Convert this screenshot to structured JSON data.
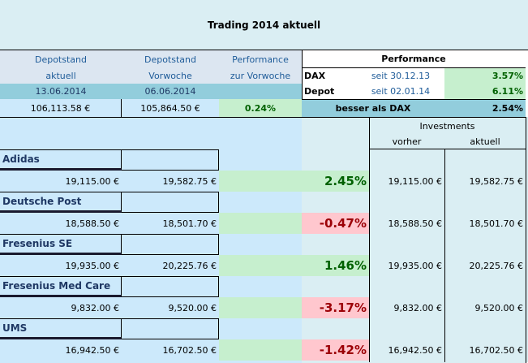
{
  "title": "Trading 2014 aktuell",
  "header": {
    "col1": [
      "Depotstand",
      "aktuell"
    ],
    "col2": [
      "Depotstand",
      "Vorwoche"
    ],
    "col3": [
      "Performance",
      "zur Vorwoche"
    ],
    "date_current": "13.06.2014",
    "date_previous": "06.06.2014",
    "value_current": "106,113.58 €",
    "value_previous": "105,864.50 €",
    "performance_week": "0.24%"
  },
  "performance": {
    "title": "Performance",
    "rows": [
      {
        "label": "DAX",
        "since": "seit 30.12.13",
        "value": "3.57%"
      },
      {
        "label": "Depot",
        "since": "seit 02.01.14",
        "value": "6.11%"
      }
    ],
    "compare_label": "besser als DAX",
    "compare_value": "2.54%"
  },
  "investments": {
    "title": "Investments",
    "before": "vorher",
    "current": "aktuell"
  },
  "stocks": [
    {
      "name": "Adidas",
      "current": "19,115.00 €",
      "previous": "19,582.75 €",
      "perf": "2.45%",
      "positive": true,
      "inv_before": "19,115.00 €",
      "inv_current": "19,582.75 €"
    },
    {
      "name": "Deutsche Post",
      "current": "18,588.50 €",
      "previous": "18,501.70 €",
      "perf": "-0.47%",
      "positive": false,
      "inv_before": "18,588.50 €",
      "inv_current": "18,501.70 €"
    },
    {
      "name": "Fresenius SE",
      "current": "19,935.00 €",
      "previous": "20,225.76 €",
      "perf": "1.46%",
      "positive": true,
      "inv_before": "19,935.00 €",
      "inv_current": "20,225.76 €"
    },
    {
      "name": "Fresenius Med Care",
      "current": "9,832.00 €",
      "previous": "9,520.00 €",
      "perf": "-3.17%",
      "positive": false,
      "inv_before": "9,832.00 €",
      "inv_current": "9,520.00 €"
    },
    {
      "name": "UMS",
      "current": "16,942.50 €",
      "previous": "16,702.50 €",
      "perf": "-1.42%",
      "positive": false,
      "inv_before": "16,942.50 €",
      "inv_current": "16,702.50 €"
    }
  ]
}
